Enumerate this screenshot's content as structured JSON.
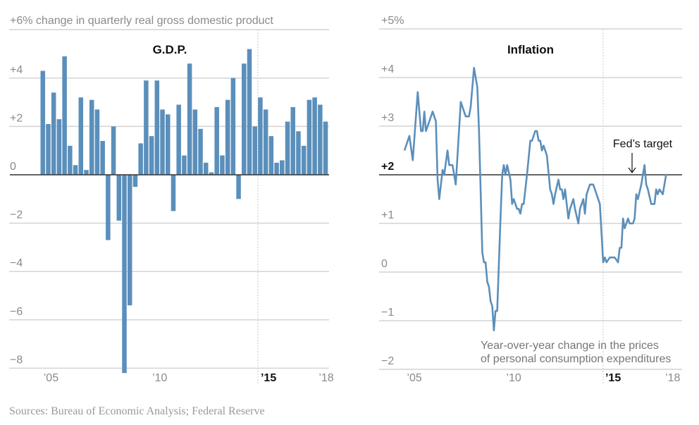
{
  "colors": {
    "series": "#5b8fbb",
    "grid": "#d4d4d4",
    "zero_line": "#333333",
    "text": "#8a8a8a"
  },
  "sources": "Sources: Bureau of Economic Analysis; Federal Reserve",
  "chart_data": [
    {
      "type": "bar",
      "title": "G.D.P.",
      "ylabel": "+6% change in quarterly real gross domestic product",
      "ylim": [
        -8,
        6
      ],
      "yticks": [
        {
          "value": 4,
          "label": "+4"
        },
        {
          "value": 2,
          "label": "+2"
        },
        {
          "value": 0,
          "label": "0"
        },
        {
          "value": -2,
          "label": "−2"
        },
        {
          "value": -4,
          "label": "−4"
        },
        {
          "value": -6,
          "label": "−6"
        },
        {
          "value": -8,
          "label": "−8"
        }
      ],
      "xticks": [
        {
          "year": 2005,
          "label": "’05",
          "bold": false
        },
        {
          "year": 2010,
          "label": "’10",
          "bold": false
        },
        {
          "year": 2015,
          "label": "’15",
          "bold": true
        },
        {
          "year": 2018,
          "label": "’18",
          "bold": false
        }
      ],
      "grid": true,
      "highlight_line": {
        "x": "2015-Q1",
        "style": "dotted"
      },
      "start_quarter": "2005-Q1",
      "end_quarter": "2018-Q1",
      "values": [
        4.3,
        2.1,
        3.4,
        2.3,
        4.9,
        1.2,
        0.4,
        3.2,
        0.2,
        3.1,
        2.7,
        1.4,
        -2.7,
        2.0,
        -1.9,
        -8.2,
        -5.4,
        -0.5,
        1.3,
        3.9,
        1.6,
        3.9,
        2.7,
        2.5,
        -1.5,
        2.9,
        0.8,
        4.6,
        2.7,
        1.9,
        0.5,
        0.1,
        2.8,
        0.8,
        3.1,
        4.0,
        -1.0,
        4.6,
        5.2,
        2.0,
        3.2,
        2.7,
        1.6,
        0.5,
        0.6,
        2.2,
        2.8,
        1.8,
        1.2,
        3.1,
        3.2,
        2.9,
        2.2
      ]
    },
    {
      "type": "line",
      "title": "Inflation",
      "ylim": [
        -2,
        5
      ],
      "yticks": [
        {
          "value": 5,
          "label": "+5%",
          "bold": false
        },
        {
          "value": 4,
          "label": "+4",
          "bold": false
        },
        {
          "value": 3,
          "label": "+3",
          "bold": false
        },
        {
          "value": 2,
          "label": "+2",
          "bold": true
        },
        {
          "value": 1,
          "label": "+1",
          "bold": false
        },
        {
          "value": 0,
          "label": "0",
          "bold": false
        },
        {
          "value": -1,
          "label": "−1",
          "bold": false
        },
        {
          "value": -2,
          "label": "−2",
          "bold": false
        }
      ],
      "xticks": [
        {
          "year": 2005,
          "label": "’05",
          "bold": false
        },
        {
          "year": 2010,
          "label": "’10",
          "bold": false
        },
        {
          "year": 2015,
          "label": "’15",
          "bold": true
        },
        {
          "year": 2018,
          "label": "’18",
          "bold": false
        }
      ],
      "grid": true,
      "reference_line": {
        "value": 2,
        "label": "Fed’s target"
      },
      "highlight_line": {
        "x": "2015-01",
        "style": "dotted"
      },
      "note": [
        "Year-over-year change in the prices",
        "of personal consumption expenditures"
      ],
      "points": [
        [
          "2005-01",
          2.5
        ],
        [
          "2005-04",
          2.8
        ],
        [
          "2005-06",
          2.3
        ],
        [
          "2005-09",
          3.7
        ],
        [
          "2005-11",
          2.9
        ],
        [
          "2005-12",
          2.9
        ],
        [
          "2006-01",
          3.3
        ],
        [
          "2006-02",
          2.9
        ],
        [
          "2006-06",
          3.3
        ],
        [
          "2006-08",
          3.1
        ],
        [
          "2006-09",
          1.9
        ],
        [
          "2006-10",
          1.5
        ],
        [
          "2006-12",
          2.1
        ],
        [
          "2007-01",
          2.0
        ],
        [
          "2007-03",
          2.5
        ],
        [
          "2007-04",
          2.2
        ],
        [
          "2007-06",
          2.2
        ],
        [
          "2007-08",
          1.8
        ],
        [
          "2007-11",
          3.5
        ],
        [
          "2008-02",
          3.2
        ],
        [
          "2008-04",
          3.2
        ],
        [
          "2008-05",
          3.4
        ],
        [
          "2008-07",
          4.2
        ],
        [
          "2008-09",
          3.8
        ],
        [
          "2008-10",
          2.9
        ],
        [
          "2008-12",
          0.4
        ],
        [
          "2009-01",
          0.2
        ],
        [
          "2009-02",
          0.2
        ],
        [
          "2009-03",
          -0.2
        ],
        [
          "2009-04",
          -0.3
        ],
        [
          "2009-05",
          -0.6
        ],
        [
          "2009-06",
          -0.7
        ],
        [
          "2009-07",
          -1.2
        ],
        [
          "2009-08",
          -0.8
        ],
        [
          "2009-09",
          -0.8
        ],
        [
          "2009-11",
          1.1
        ],
        [
          "2009-12",
          2.0
        ],
        [
          "2010-01",
          2.2
        ],
        [
          "2010-02",
          2.0
        ],
        [
          "2010-03",
          2.2
        ],
        [
          "2010-05",
          1.9
        ],
        [
          "2010-06",
          1.4
        ],
        [
          "2010-07",
          1.5
        ],
        [
          "2010-09",
          1.3
        ],
        [
          "2010-10",
          1.3
        ],
        [
          "2010-11",
          1.2
        ],
        [
          "2010-12",
          1.4
        ],
        [
          "2011-01",
          1.4
        ],
        [
          "2011-03",
          2.0
        ],
        [
          "2011-05",
          2.7
        ],
        [
          "2011-06",
          2.7
        ],
        [
          "2011-08",
          2.9
        ],
        [
          "2011-09",
          2.9
        ],
        [
          "2011-10",
          2.7
        ],
        [
          "2011-11",
          2.7
        ],
        [
          "2011-12",
          2.5
        ],
        [
          "2012-01",
          2.6
        ],
        [
          "2012-03",
          2.4
        ],
        [
          "2012-05",
          1.7
        ],
        [
          "2012-06",
          1.6
        ],
        [
          "2012-07",
          1.4
        ],
        [
          "2012-08",
          1.6
        ],
        [
          "2012-10",
          1.9
        ],
        [
          "2012-11",
          1.7
        ],
        [
          "2012-12",
          1.7
        ],
        [
          "2013-01",
          1.5
        ],
        [
          "2013-02",
          1.7
        ],
        [
          "2013-04",
          1.1
        ],
        [
          "2013-05",
          1.3
        ],
        [
          "2013-07",
          1.5
        ],
        [
          "2013-08",
          1.3
        ],
        [
          "2013-10",
          1.0
        ],
        [
          "2013-11",
          1.3
        ],
        [
          "2014-01",
          1.5
        ],
        [
          "2014-02",
          1.2
        ],
        [
          "2014-03",
          1.6
        ],
        [
          "2014-05",
          1.8
        ],
        [
          "2014-07",
          1.8
        ],
        [
          "2014-09",
          1.6
        ],
        [
          "2014-11",
          1.4
        ],
        [
          "2015-01",
          0.2
        ],
        [
          "2015-02",
          0.3
        ],
        [
          "2015-03",
          0.2
        ],
        [
          "2015-05",
          0.3
        ],
        [
          "2015-08",
          0.3
        ],
        [
          "2015-10",
          0.2
        ],
        [
          "2015-11",
          0.5
        ],
        [
          "2015-12",
          0.5
        ],
        [
          "2016-01",
          1.1
        ],
        [
          "2016-02",
          0.9
        ],
        [
          "2016-04",
          1.1
        ],
        [
          "2016-05",
          1.0
        ],
        [
          "2016-07",
          1.0
        ],
        [
          "2016-08",
          1.1
        ],
        [
          "2016-09",
          1.6
        ],
        [
          "2016-10",
          1.5
        ],
        [
          "2016-12",
          1.8
        ],
        [
          "2017-02",
          2.2
        ],
        [
          "2017-03",
          1.8
        ],
        [
          "2017-04",
          1.7
        ],
        [
          "2017-06",
          1.4
        ],
        [
          "2017-08",
          1.4
        ],
        [
          "2017-09",
          1.7
        ],
        [
          "2017-10",
          1.6
        ],
        [
          "2017-11",
          1.7
        ],
        [
          "2018-01",
          1.6
        ],
        [
          "2018-03",
          2.0
        ],
        [
          "2018-04",
          2.0
        ]
      ]
    }
  ]
}
